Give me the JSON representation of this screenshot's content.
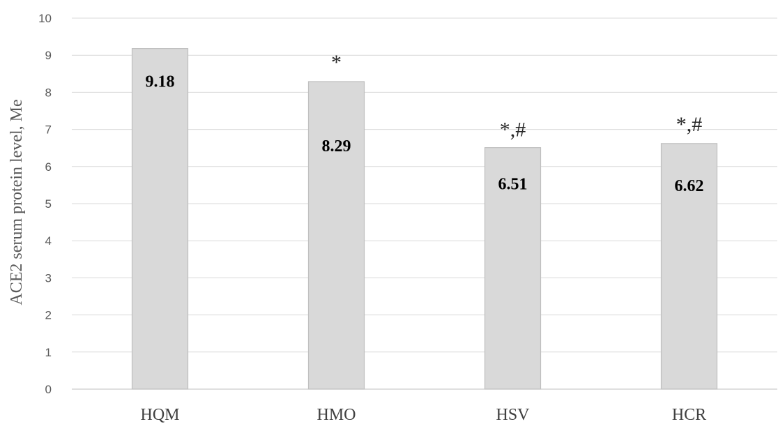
{
  "chart_data": {
    "type": "bar",
    "categories": [
      "HQM",
      "HMO",
      "HSV",
      "HCR"
    ],
    "values": [
      9.18,
      8.29,
      6.51,
      6.62
    ],
    "data_labels": [
      "9.18",
      "8.29",
      "6.51",
      "6.62"
    ],
    "annotations": [
      "",
      "*",
      "*,#",
      "*,#"
    ],
    "title": "",
    "xlabel": "",
    "ylabel": "ACE2 serum protein level, Me",
    "ylim": [
      0,
      10
    ],
    "yticks": [
      "0",
      "1",
      "2",
      "3",
      "4",
      "5",
      "6",
      "7",
      "8",
      "9",
      "10"
    ],
    "grid": true,
    "legend": "none",
    "colors": {
      "bar_fill": "#d9d9d9",
      "bar_stroke": "#bfbfbf",
      "grid": "#d9d9d9"
    }
  }
}
